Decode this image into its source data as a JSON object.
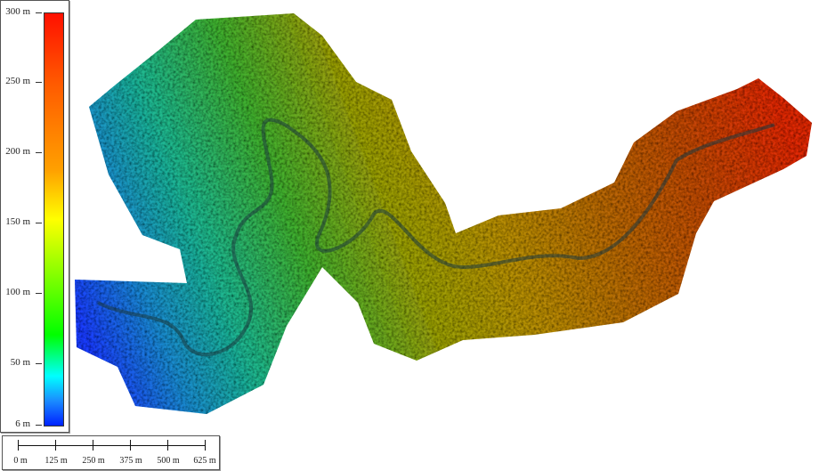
{
  "legend": {
    "unit_labels": [
      "300 m",
      "250 m",
      "200 m",
      "150 m",
      "100 m",
      "50 m",
      "6 m"
    ],
    "min_value": 6,
    "max_value": 300,
    "colors": [
      "#0022ff",
      "#1a8cff",
      "#00ffff",
      "#00ff00",
      "#ffff00",
      "#ffa000",
      "#ff5a00",
      "#ff1000"
    ]
  },
  "scale_bar": {
    "labels": [
      "0 m",
      "125 m",
      "250 m",
      "375 m",
      "500 m",
      "625 m"
    ]
  },
  "map": {
    "type": "elevation-model",
    "low_color": "#1a3cff",
    "high_color": "#e03a10"
  }
}
